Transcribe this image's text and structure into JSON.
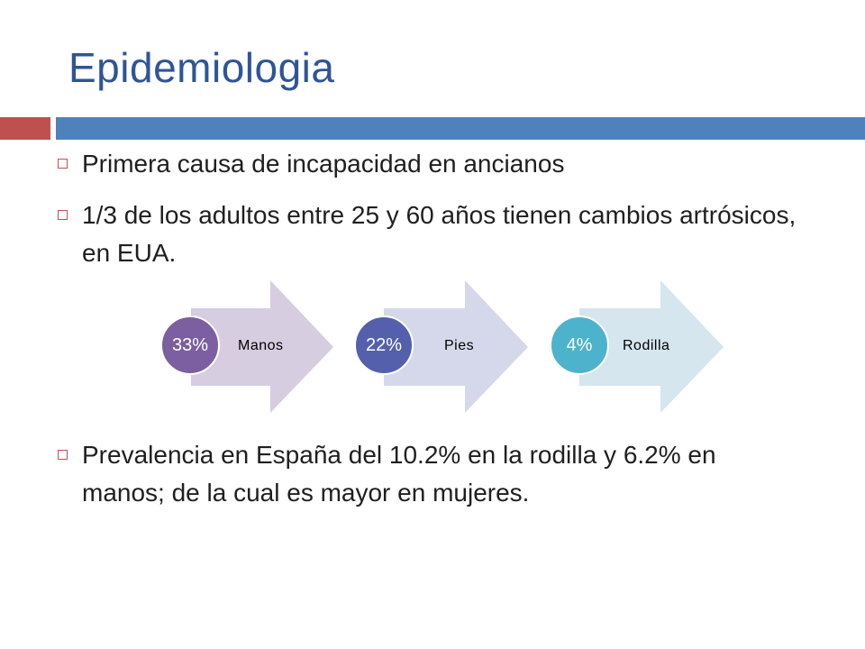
{
  "slide": {
    "title": "Epidemiologia",
    "bullets": [
      "Primera causa de incapacidad en ancianos",
      "1/3 de los adultos entre 25 y 60 años tienen cambios artrósicos, en EUA.",
      "Prevalencia en España del 10.2% en la rodilla y 6.2% en manos; de la cual es mayor en mujeres."
    ]
  },
  "diagram": {
    "items": [
      {
        "label": "Manos",
        "percent": "33%",
        "arrow_color": "#d6cde0",
        "circle_color": "#7b5fa0"
      },
      {
        "label": "Pies",
        "percent": "22%",
        "arrow_color": "#d5d8ea",
        "circle_color": "#5560ad"
      },
      {
        "label": "Rodilla",
        "percent": "4%",
        "arrow_color": "#d5e6ef",
        "circle_color": "#4db3cc"
      }
    ]
  },
  "colors": {
    "title": "#2f5597",
    "accent_red": "#c0504d",
    "accent_blue": "#4f81bd"
  }
}
